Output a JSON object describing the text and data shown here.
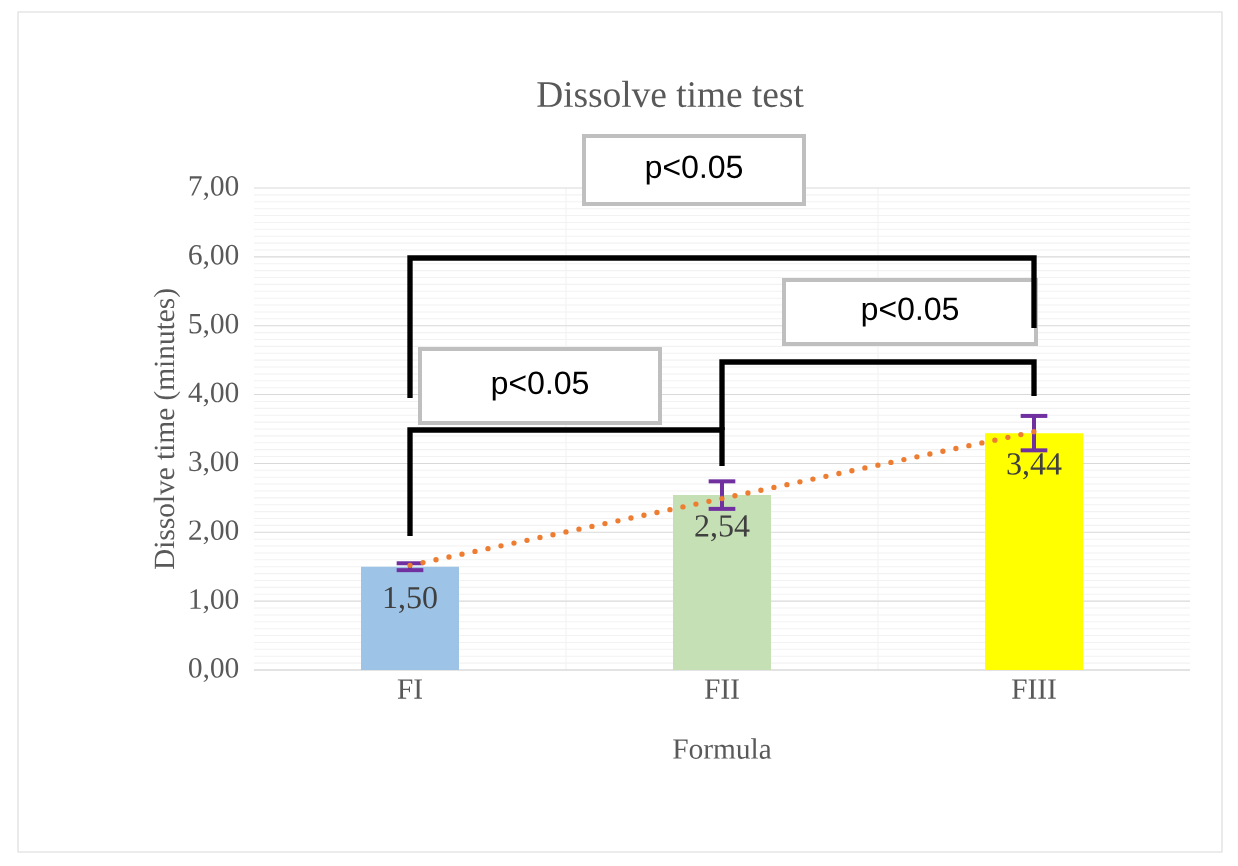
{
  "chart_data": {
    "type": "bar",
    "title": "Dissolve time test",
    "xlabel": "Formula",
    "ylabel": "Dissolve time (minutes)",
    "categories": [
      "FI",
      "FII",
      "FIII"
    ],
    "series": [
      {
        "type": "bar",
        "colors": [
          "#9dc3e6",
          "#c5e0b4",
          "#ffff00"
        ],
        "values": [
          1.5,
          2.54,
          3.44
        ],
        "errors": [
          0.05,
          0.2,
          0.25
        ],
        "value_labels": [
          "1,50",
          "2,54",
          "3,44"
        ]
      },
      {
        "type": "line",
        "color": "#ed7d31",
        "line_style": "dotted",
        "values": [
          1.52,
          2.49,
          3.46
        ]
      }
    ],
    "ylim": [
      0,
      7
    ],
    "yticks": [
      {
        "value": 0,
        "label": "0,00"
      },
      {
        "value": 1,
        "label": "1,00"
      },
      {
        "value": 2,
        "label": "2,00"
      },
      {
        "value": 3,
        "label": "3,00"
      },
      {
        "value": 4,
        "label": "4,00"
      },
      {
        "value": 5,
        "label": "5,00"
      },
      {
        "value": 6,
        "label": "6,00"
      },
      {
        "value": 7,
        "label": "7,00"
      }
    ],
    "grid": true,
    "annotations": [
      "p<0.05",
      "p<0.05",
      "p<0.05"
    ]
  }
}
